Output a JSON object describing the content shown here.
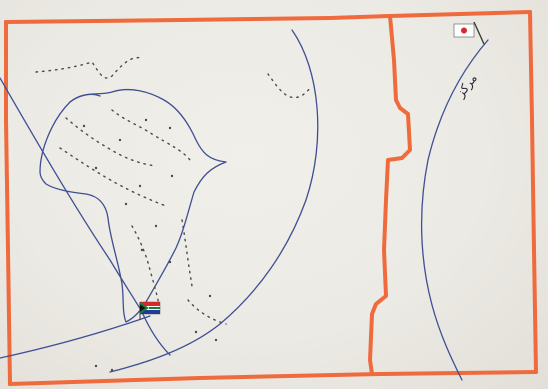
{
  "image": {
    "kind": "hand-drawn sketch on paper",
    "colors": {
      "paper": "#eceae4",
      "border": "#ef6a3c",
      "pen": "#3e4f93",
      "dots": "#4a4a52",
      "flag_red": "#d62a2a"
    }
  },
  "labels": {
    "script_text": "مرکز"
  },
  "icons": {
    "left_flag": "south-africa-flag-icon",
    "right_flag": "japan-flag-icon"
  }
}
